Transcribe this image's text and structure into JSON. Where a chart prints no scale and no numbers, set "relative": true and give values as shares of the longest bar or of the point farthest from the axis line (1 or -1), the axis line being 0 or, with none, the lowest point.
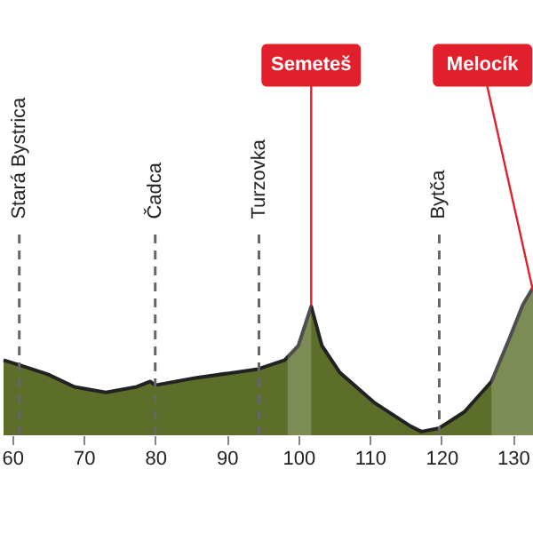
{
  "chart_data": {
    "type": "area",
    "relative": true,
    "x": [
      58.8,
      61.2,
      65,
      68.7,
      73.1,
      77.4,
      79.3,
      80,
      85.6,
      94.4,
      98.1,
      100,
      101.8,
      103.3,
      105.8,
      110.7,
      115.7,
      117.2,
      119.7,
      123.2,
      127,
      129.4,
      131.4,
      133.2
    ],
    "series": [
      {
        "color": "#5d6e2a",
        "values": [
          0.494,
          0.459,
          0.4,
          0.318,
          0.282,
          0.318,
          0.353,
          0.329,
          0.376,
          0.435,
          0.494,
          0.588,
          0.847,
          0.588,
          0.412,
          0.212,
          0.059,
          0.024,
          0.047,
          0.153,
          0.353,
          0.624,
          0.859,
          1
        ]
      }
    ],
    "xlim": [
      58.8,
      133.3
    ],
    "xticks": [
      60,
      70,
      80,
      90,
      100,
      110,
      120,
      130
    ],
    "ref_lines": [
      {
        "axis": "x",
        "value": 61,
        "label": "Stará Bystrica",
        "line_style": "dashed",
        "color": "#666666"
      },
      {
        "axis": "x",
        "value": 80,
        "label": "Čadca",
        "line_style": "dashed",
        "color": "#666666"
      },
      {
        "axis": "x",
        "value": 94.5,
        "label": "Turzovka",
        "line_style": "dashed",
        "color": "#666666"
      },
      {
        "axis": "x",
        "value": 119.7,
        "label": "Bytča",
        "line_style": "dashed",
        "color": "#666666"
      }
    ],
    "bands": [
      {
        "axis": "x",
        "from": 98.5,
        "to": 101.8,
        "color": "#ffffff"
      },
      {
        "axis": "x",
        "from": 127,
        "to": 133.2,
        "color": "#ffffff"
      }
    ],
    "annotations": [
      {
        "text": "Semeteš",
        "x": 101.8,
        "y": 0.847
      },
      {
        "text": "Melocík",
        "x": 132.8,
        "y": 0.95
      }
    ],
    "grid": false
  }
}
